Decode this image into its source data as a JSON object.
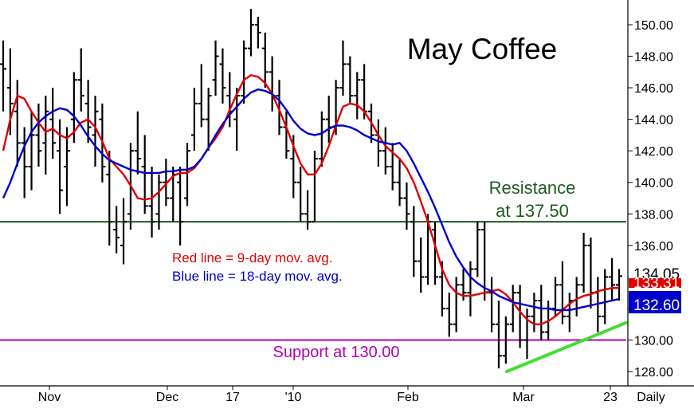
{
  "chart_data": {
    "type": "ohlc",
    "title": "May Coffee",
    "period_label": "Daily",
    "x_labels": [
      "Nov",
      "Dec",
      "17",
      "'10",
      "Feb",
      "Mar",
      "23"
    ],
    "y_ticks": [
      "128.00",
      "130.00",
      "132.00",
      "134.00",
      "136.00",
      "138.00",
      "140.00",
      "142.00",
      "144.00",
      "146.00",
      "148.00",
      "150.00"
    ],
    "ylim": [
      127.0,
      151.5
    ],
    "grid": false,
    "annotations": {
      "resistance": {
        "text_line1": "Resistance",
        "text_line2": "at 137.50",
        "value": 137.5,
        "color": "#1f5a1f"
      },
      "support": {
        "text": "Support at 130.00",
        "value": 130.0,
        "color": "#b000b0"
      },
      "legend_red": {
        "text": "Red line = 9-day mov. avg.",
        "color": "#e00000"
      },
      "legend_blue": {
        "text": "Blue line = 18-day mov. avg.",
        "color": "#0000cc"
      }
    },
    "trendline": {
      "color": "#44dd33",
      "from_value": 128.0,
      "to_value": 131.1
    },
    "price_badges": [
      {
        "text": "134.05",
        "color": "#000000",
        "bg": "#ffffff"
      },
      {
        "text": "133.31",
        "color": "#ffffff",
        "bg": "#e00000"
      },
      {
        "text": "132.60",
        "color": "#ffffff",
        "bg": "#0000cc"
      }
    ],
    "series": [
      {
        "name": "9-day mov. avg.",
        "color": "#e00000",
        "values": [
          142.0,
          144.0,
          145.5,
          145.3,
          144.5,
          143.8,
          143.2,
          143.4,
          143.0,
          142.8,
          143.2,
          143.8,
          144.0,
          143.5,
          142.6,
          141.5,
          141.0,
          140.5,
          139.8,
          139.0,
          138.9,
          139.0,
          139.4,
          139.9,
          140.4,
          140.6,
          140.6,
          140.9,
          141.5,
          142.2,
          142.8,
          143.5,
          144.6,
          145.6,
          146.5,
          146.8,
          146.7,
          146.3,
          145.6,
          144.6,
          143.5,
          142.3,
          141.2,
          140.5,
          140.5,
          141.2,
          142.3,
          143.6,
          144.8,
          145.0,
          144.9,
          144.5,
          143.8,
          143.0,
          142.3,
          141.9,
          141.5,
          140.9,
          140.0,
          138.8,
          137.5,
          136.0,
          134.5,
          133.5,
          133.0,
          132.8,
          132.8,
          132.9,
          133.0,
          133.1,
          133.2,
          132.9,
          132.4,
          131.8,
          131.3,
          131.0,
          131.0,
          131.2,
          131.5,
          131.9,
          132.3,
          132.6,
          132.8,
          132.9,
          133.1,
          133.2,
          133.3,
          133.3
        ]
      },
      {
        "name": "18-day mov. avg.",
        "color": "#0000cc",
        "values": [
          139.0,
          140.0,
          141.2,
          142.3,
          143.2,
          143.8,
          144.2,
          144.5,
          144.7,
          144.6,
          144.2,
          143.6,
          142.9,
          142.3,
          141.8,
          141.4,
          141.2,
          141.0,
          140.8,
          140.7,
          140.6,
          140.6,
          140.6,
          140.7,
          140.7,
          140.8,
          140.8,
          141.0,
          141.5,
          142.2,
          143.0,
          143.7,
          144.3,
          144.8,
          145.3,
          145.7,
          145.9,
          145.8,
          145.6,
          145.2,
          144.6,
          143.9,
          143.4,
          143.1,
          143.0,
          143.1,
          143.4,
          143.6,
          143.6,
          143.5,
          143.3,
          143.0,
          142.8,
          142.6,
          142.5,
          142.4,
          142.5,
          142.0,
          141.2,
          140.3,
          139.4,
          138.4,
          137.3,
          136.2,
          135.3,
          134.6,
          134.0,
          133.6,
          133.3,
          133.1,
          132.8,
          132.6,
          132.4,
          132.3,
          132.2,
          132.1,
          132.0,
          132.0,
          131.9,
          131.9,
          131.9,
          132.0,
          132.1,
          132.2,
          132.3,
          132.4,
          132.5,
          132.6
        ]
      }
    ],
    "bars": [
      [
        147.5,
        149.0,
        144.5,
        147.2
      ],
      [
        146.0,
        148.5,
        143.0,
        145.0
      ],
      [
        144.5,
        146.5,
        141.0,
        142.5
      ],
      [
        142.5,
        143.5,
        139.0,
        141.0
      ],
      [
        141.0,
        144.5,
        139.5,
        143.0
      ],
      [
        143.0,
        145.0,
        141.0,
        142.0
      ],
      [
        142.5,
        145.5,
        140.5,
        144.5
      ],
      [
        144.0,
        146.0,
        141.5,
        142.5
      ],
      [
        142.0,
        144.0,
        138.0,
        139.5
      ],
      [
        141.0,
        143.5,
        138.5,
        142.0
      ],
      [
        144.0,
        147.0,
        142.5,
        146.5
      ],
      [
        146.5,
        148.5,
        144.5,
        145.5
      ],
      [
        145.0,
        146.5,
        142.5,
        143.5
      ],
      [
        143.0,
        145.5,
        141.0,
        144.5
      ],
      [
        144.0,
        145.0,
        140.0,
        141.0
      ],
      [
        140.5,
        142.0,
        136.0,
        137.5
      ],
      [
        137.0,
        138.5,
        135.5,
        136.5
      ],
      [
        136.0,
        139.0,
        134.8,
        137.5
      ],
      [
        138.0,
        142.5,
        137.0,
        142.0
      ],
      [
        142.0,
        144.5,
        140.5,
        141.5
      ],
      [
        141.0,
        143.0,
        138.0,
        138.5
      ],
      [
        138.5,
        141.0,
        136.5,
        137.5
      ],
      [
        138.0,
        140.5,
        137.0,
        140.0
      ],
      [
        140.0,
        141.5,
        138.5,
        139.0
      ],
      [
        139.0,
        141.0,
        137.5,
        140.5
      ],
      [
        140.0,
        141.0,
        136.0,
        137.5
      ],
      [
        139.0,
        142.5,
        138.5,
        142.0
      ],
      [
        143.0,
        146.0,
        142.0,
        145.0
      ],
      [
        145.0,
        147.5,
        143.5,
        144.0
      ],
      [
        144.0,
        146.0,
        142.0,
        145.5
      ],
      [
        146.5,
        149.0,
        145.5,
        148.0
      ],
      [
        147.5,
        148.5,
        145.0,
        146.0
      ],
      [
        145.5,
        147.0,
        143.5,
        144.5
      ],
      [
        144.0,
        146.0,
        142.0,
        145.5
      ],
      [
        145.5,
        149.0,
        145.0,
        148.5
      ],
      [
        148.5,
        151.0,
        148.0,
        150.0
      ],
      [
        150.0,
        150.5,
        148.5,
        149.5
      ],
      [
        148.5,
        149.5,
        146.0,
        147.0
      ],
      [
        147.0,
        148.0,
        144.5,
        145.5
      ],
      [
        145.5,
        146.5,
        143.0,
        143.5
      ],
      [
        143.5,
        144.5,
        141.5,
        142.0
      ],
      [
        141.5,
        143.0,
        139.0,
        140.0
      ],
      [
        140.0,
        141.0,
        137.5,
        138.0
      ],
      [
        138.0,
        139.5,
        137.0,
        137.5
      ],
      [
        137.5,
        142.0,
        137.5,
        141.5
      ],
      [
        141.5,
        144.5,
        141.0,
        144.0
      ],
      [
        144.0,
        145.5,
        142.5,
        143.5
      ],
      [
        143.5,
        146.5,
        143.0,
        146.0
      ],
      [
        146.0,
        149.0,
        145.5,
        147.5
      ],
      [
        147.5,
        148.0,
        145.0,
        145.5
      ],
      [
        145.5,
        147.0,
        144.0,
        146.5
      ],
      [
        146.5,
        147.5,
        144.0,
        144.5
      ],
      [
        144.5,
        145.0,
        142.5,
        143.0
      ],
      [
        143.0,
        144.0,
        141.0,
        142.0
      ],
      [
        142.0,
        143.5,
        140.5,
        141.0
      ],
      [
        141.0,
        142.5,
        139.5,
        140.0
      ],
      [
        140.0,
        141.5,
        138.5,
        139.0
      ],
      [
        139.0,
        140.0,
        137.0,
        138.0
      ],
      [
        137.5,
        138.5,
        134.0,
        135.0
      ],
      [
        135.0,
        136.5,
        133.0,
        134.0
      ],
      [
        134.0,
        138.0,
        133.5,
        137.5
      ],
      [
        137.0,
        137.5,
        133.5,
        134.0
      ],
      [
        134.0,
        135.0,
        131.5,
        132.0
      ],
      [
        132.0,
        133.0,
        130.2,
        131.0
      ],
      [
        131.0,
        134.0,
        130.5,
        133.5
      ],
      [
        133.5,
        134.5,
        132.5,
        133.0
      ],
      [
        133.0,
        135.0,
        131.5,
        134.5
      ],
      [
        134.5,
        137.5,
        134.0,
        137.0
      ],
      [
        137.0,
        137.5,
        132.5,
        133.0
      ],
      [
        133.0,
        134.0,
        130.5,
        131.0
      ],
      [
        131.0,
        132.5,
        128.2,
        129.0
      ],
      [
        129.0,
        131.5,
        128.5,
        131.0
      ],
      [
        131.0,
        133.5,
        130.5,
        133.0
      ],
      [
        133.0,
        133.5,
        129.5,
        130.0
      ],
      [
        130.0,
        132.0,
        128.8,
        131.5
      ],
      [
        131.5,
        133.0,
        130.5,
        132.5
      ],
      [
        132.5,
        133.5,
        130.0,
        130.5
      ],
      [
        130.5,
        132.5,
        130.0,
        132.0
      ],
      [
        132.0,
        134.0,
        131.5,
        133.5
      ],
      [
        133.5,
        135.0,
        131.0,
        131.5
      ],
      [
        131.5,
        133.0,
        130.5,
        132.5
      ],
      [
        132.5,
        134.0,
        131.5,
        133.5
      ],
      [
        133.5,
        136.8,
        133.0,
        136.0
      ],
      [
        136.0,
        136.5,
        132.0,
        133.0
      ],
      [
        133.0,
        134.0,
        130.5,
        131.5
      ],
      [
        131.5,
        134.5,
        131.0,
        134.0
      ],
      [
        134.0,
        135.2,
        132.5,
        133.5
      ],
      [
        133.5,
        134.5,
        132.5,
        134.05
      ]
    ]
  }
}
